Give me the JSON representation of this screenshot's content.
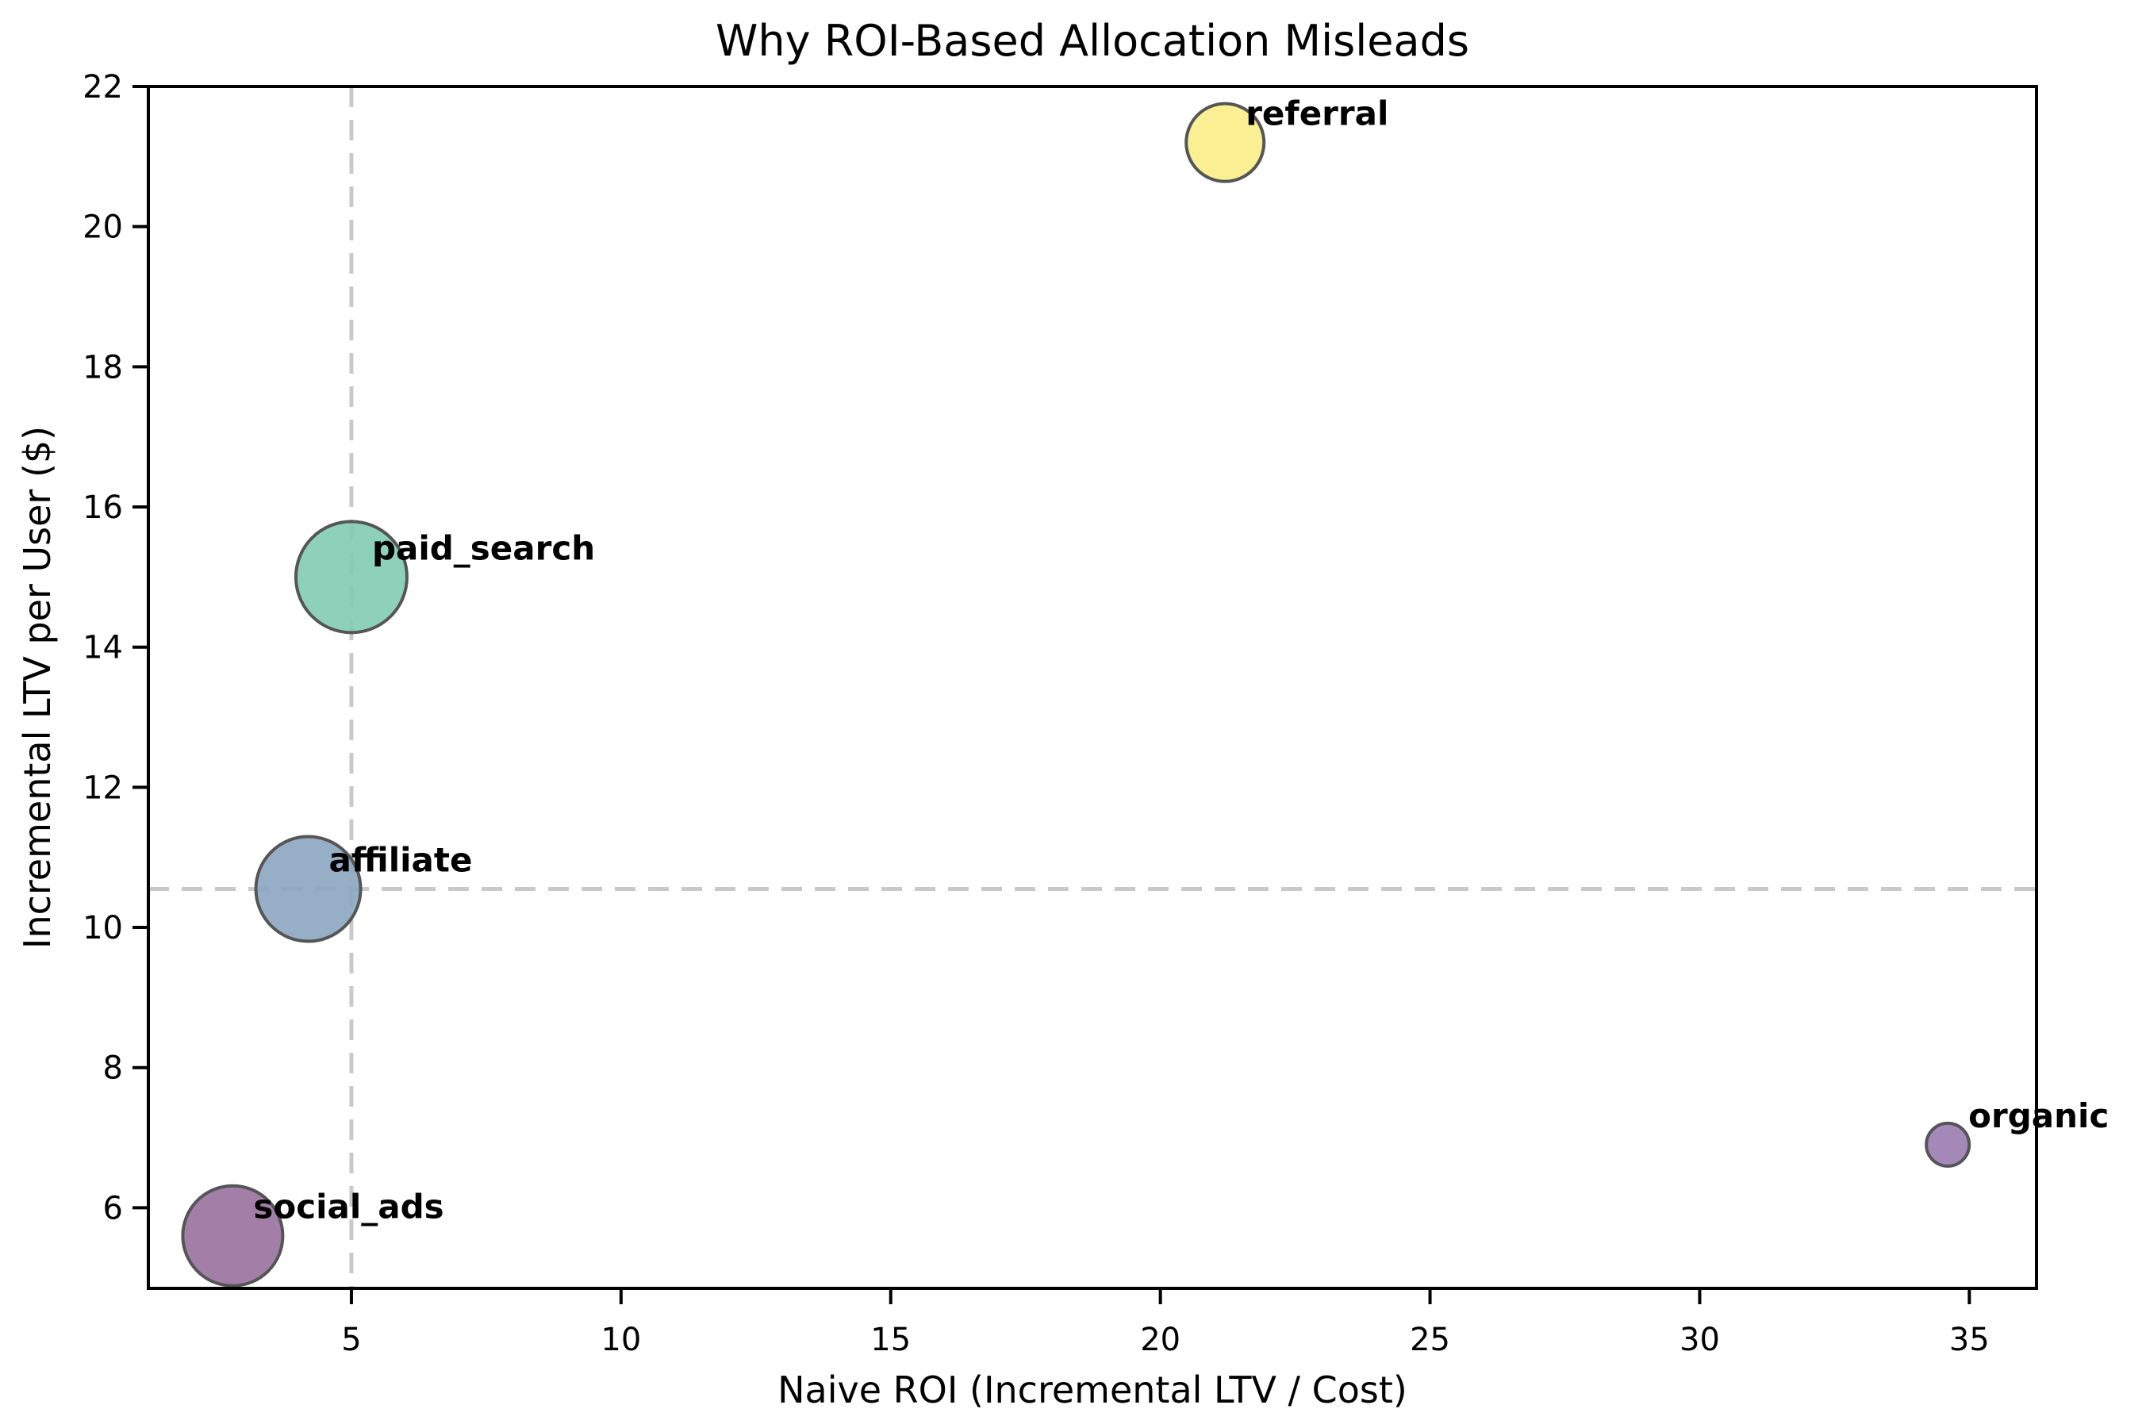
{
  "chart_data": {
    "type": "scatter",
    "title": "Why ROI-Based Allocation Misleads",
    "xlabel": "Naive ROI (Incremental LTV / Cost)",
    "ylabel": "Incremental LTV per User ($)",
    "xlim": [
      1.235,
      36.245
    ],
    "ylim": [
      4.85,
      22
    ],
    "xticks": [
      5,
      10,
      15,
      20,
      25,
      30,
      35
    ],
    "yticks": [
      6,
      8,
      10,
      12,
      14,
      16,
      18,
      20,
      22
    ],
    "grid": false,
    "legend": "none",
    "background": "#ffffff",
    "spine_color": "#000000",
    "text_color": "#000000",
    "points": [
      {
        "label": "social_ads",
        "x": 2.8,
        "y": 5.6,
        "radius_px": 63,
        "fill": "#99719E"
      },
      {
        "label": "affiliate",
        "x": 4.2,
        "y": 10.55,
        "radius_px": 66,
        "fill": "#8BA6C1"
      },
      {
        "label": "paid_search",
        "x": 5.0,
        "y": 15.0,
        "radius_px": 70,
        "fill": "#81CCB3"
      },
      {
        "label": "referral",
        "x": 21.2,
        "y": 21.2,
        "radius_px": 49,
        "fill": "#FBED88"
      },
      {
        "label": "organic",
        "x": 34.6,
        "y": 6.9,
        "radius_px": 27,
        "fill": "#9A7BB0"
      }
    ],
    "bubble_edge_color": "#555555",
    "bubble_fill_opacity": 0.9,
    "reference_lines": {
      "vertical_x": 5.0,
      "horizontal_y": 10.55,
      "color": "#c9c9c9",
      "style": "dashed"
    }
  }
}
